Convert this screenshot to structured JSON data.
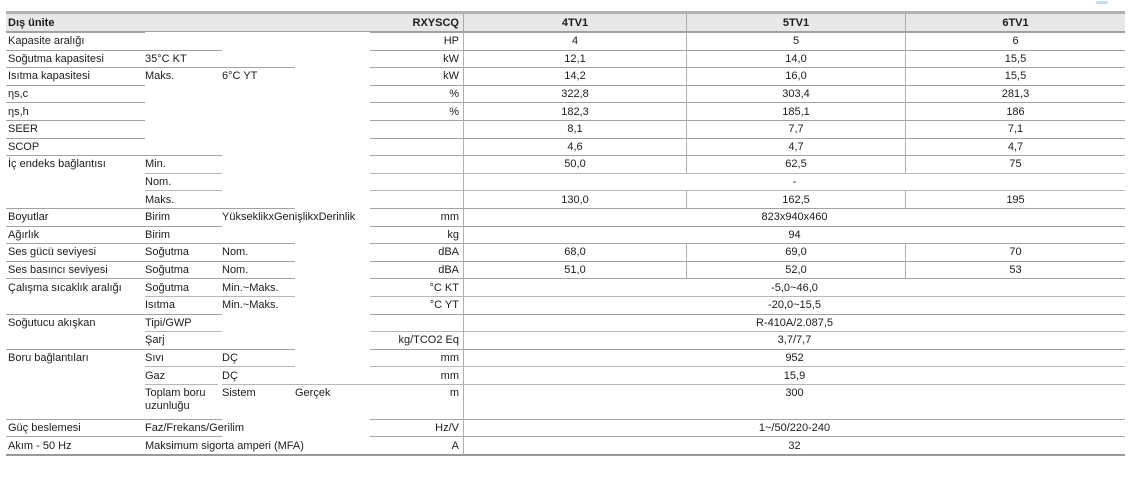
{
  "header": {
    "col1": "Dış ünite",
    "series": "RXYSCQ",
    "models": [
      "4TV1",
      "5TV1",
      "6TV1"
    ]
  },
  "colors": {
    "header_bg": "#e8e8e8",
    "border_light": "#b7b7b7",
    "border": "#a2a2a2",
    "border_dark": "#9a9a9a",
    "text": "#1c1c1c",
    "artifact_blue": "#b9d3ee"
  },
  "rows": [
    {
      "label": "Kapasite aralığı",
      "unit": "HP",
      "values": [
        "4",
        "5",
        "6"
      ]
    },
    {
      "label": "Soğutma kapasitesi",
      "sub1": "35°C KT",
      "unit": "kW",
      "values": [
        "12,1",
        "14,0",
        "15,5"
      ]
    },
    {
      "label": "Isıtma kapasitesi",
      "sub1": "Maks.",
      "sub2": "6°C YT",
      "unit": "kW",
      "values": [
        "14,2",
        "16,0",
        "15,5"
      ]
    },
    {
      "label": "ηs,c",
      "unit": "%",
      "values": [
        "322,8",
        "303,4",
        "281,3"
      ]
    },
    {
      "label": "ηs,h",
      "unit": "%",
      "values": [
        "182,3",
        "185,1",
        "186"
      ]
    },
    {
      "label": "SEER",
      "values": [
        "8,1",
        "7,7",
        "7,1"
      ]
    },
    {
      "label": "SCOP",
      "values": [
        "4,6",
        "4,7",
        "4,7"
      ]
    },
    {
      "label": "İç endeks bağlantısı",
      "sub1": "Min.",
      "values": [
        "50,0",
        "62,5",
        "75"
      ]
    },
    {
      "cont": true,
      "sub1": "Nom.",
      "merged": "-"
    },
    {
      "cont": true,
      "sub1": "Maks.",
      "values": [
        "130,0",
        "162,5",
        "195"
      ]
    },
    {
      "label": "Boyutlar",
      "sub1": "Birim",
      "sub2": "YükseklikxGenişlikxDerinlik",
      "unit": "mm",
      "merged": "823x940x460"
    },
    {
      "label": "Ağırlık",
      "sub1": "Birim",
      "unit": "kg",
      "merged": "94"
    },
    {
      "label": "Ses gücü seviyesi",
      "sub1": "Soğutma",
      "sub2": "Nom.",
      "unit": "dBA",
      "values": [
        "68,0",
        "69,0",
        "70"
      ]
    },
    {
      "label": "Ses basıncı seviyesi",
      "sub1": "Soğutma",
      "sub2": "Nom.",
      "unit": "dBA",
      "values": [
        "51,0",
        "52,0",
        "53"
      ]
    },
    {
      "label": "Çalışma sıcaklık aralığı",
      "sub1": "Soğutma",
      "sub2": "Min.~Maks.",
      "unit": "°C KT",
      "merged": "-5,0~46,0"
    },
    {
      "cont": true,
      "sub1": "Isıtma",
      "sub2": "Min.~Maks.",
      "unit": "°C YT",
      "merged": "-20,0~15,5"
    },
    {
      "label": "Soğutucu akışkan",
      "sub1": "Tipi/GWP",
      "merged": "R-410A/2.087,5"
    },
    {
      "cont": true,
      "sub1": "Şarj",
      "unit": "kg/TCO2 Eq",
      "merged": "3,7/7,7"
    },
    {
      "label": "Boru bağlantıları",
      "sub1": "Sıvı",
      "sub2": "DÇ",
      "unit": "mm",
      "merged": "952"
    },
    {
      "cont": true,
      "sub1": "Gaz",
      "sub2": "DÇ",
      "unit": "mm",
      "merged": "15,9"
    },
    {
      "cont": true,
      "tall": true,
      "sub1": "Toplam boru uzunluğu",
      "sub2": "Sistem",
      "sub3": "Gerçek",
      "unit": "m",
      "merged": "300"
    },
    {
      "label": "Güç beslemesi",
      "sub1": "Faz/Frekans/Gerilim",
      "unit": "Hz/V",
      "merged": "1~/50/220-240"
    },
    {
      "label": "Akım - 50 Hz",
      "sub1": "Maksimum sigorta amperi (MFA)",
      "unit": "A",
      "merged": "32"
    }
  ]
}
